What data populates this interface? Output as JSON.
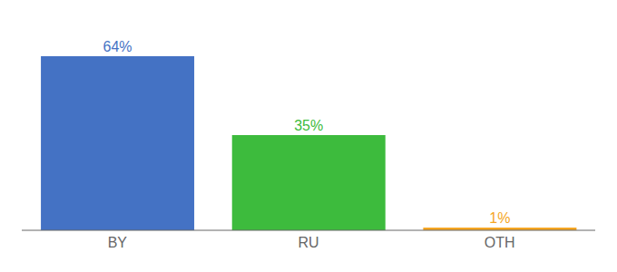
{
  "chart_data": {
    "type": "bar",
    "categories": [
      "BY",
      "RU",
      "OTH"
    ],
    "values": [
      64,
      35,
      1
    ],
    "value_labels": [
      "64%",
      "35%",
      "1%"
    ],
    "colors": [
      "#4472c4",
      "#3dbb3d",
      "#f5a623"
    ],
    "ylim": [
      0,
      74
    ],
    "data_labels": true,
    "tick_labels": "x"
  }
}
